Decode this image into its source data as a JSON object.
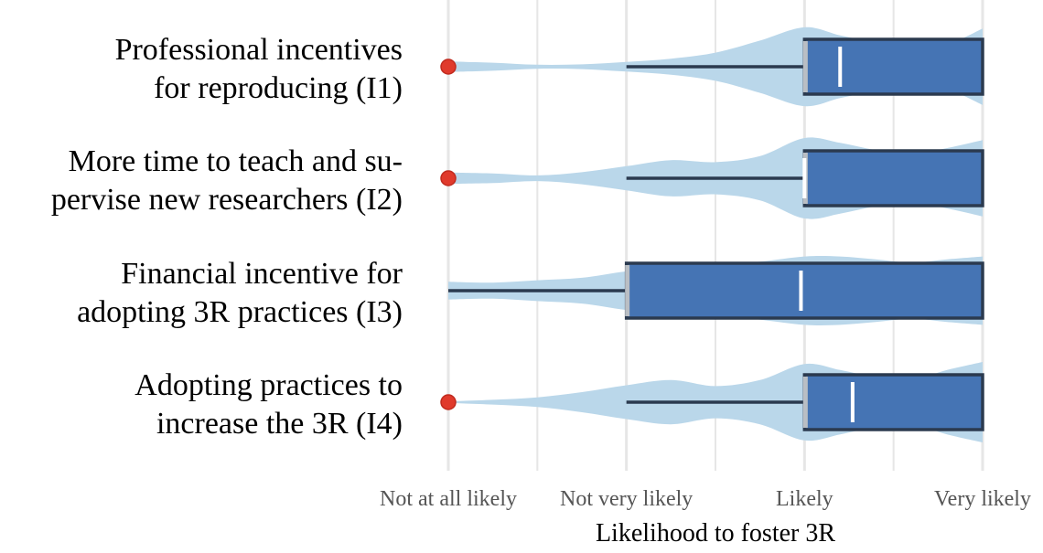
{
  "chart_data": {
    "type": "violin-box",
    "title": "",
    "xlabel": "Likelihood to foster 3R",
    "ylabel": "",
    "x_tick_labels": [
      "Not at all likely",
      "Not very likely",
      "Likely",
      "Very likely"
    ],
    "x_tick_values": [
      1,
      2,
      3,
      4
    ],
    "xlim": [
      1,
      4
    ],
    "grid": "vertical",
    "colors": {
      "violin": "#bad7ea",
      "box_fill": "#4574b4",
      "box_edge": "#2b3a4f",
      "whisker": "#2b3a4f",
      "median": "#ffffff",
      "outlier": "#e03a2c",
      "grid": "#e6e6e6"
    },
    "categories": [
      {
        "label_lines": [
          "Professional incentives",
          "for reproducing (I1)"
        ],
        "q1": 3,
        "median": 3.2,
        "q3": 4,
        "whisker_low": 2,
        "whisker_high": 4,
        "outliers": [
          1
        ],
        "density": [
          [
            1,
            0.13
          ],
          [
            1.25,
            0.1
          ],
          [
            1.5,
            0.05
          ],
          [
            1.75,
            0.06
          ],
          [
            2,
            0.12
          ],
          [
            2.25,
            0.2
          ],
          [
            2.5,
            0.35
          ],
          [
            2.75,
            0.65
          ],
          [
            3,
            0.98
          ],
          [
            3.2,
            0.78
          ],
          [
            3.4,
            0.6
          ],
          [
            3.6,
            0.42
          ],
          [
            3.8,
            0.55
          ],
          [
            4,
            0.95
          ]
        ]
      },
      {
        "label_lines": [
          "More time to teach and su-",
          "pervise new researchers (I2)"
        ],
        "q1": 3,
        "median": 3,
        "q3": 4,
        "whisker_low": 2,
        "whisker_high": 4,
        "outliers": [
          1
        ],
        "density": [
          [
            1,
            0.14
          ],
          [
            1.25,
            0.12
          ],
          [
            1.5,
            0.07
          ],
          [
            1.75,
            0.15
          ],
          [
            2,
            0.3
          ],
          [
            2.25,
            0.45
          ],
          [
            2.5,
            0.4
          ],
          [
            2.75,
            0.55
          ],
          [
            3,
            1.0
          ],
          [
            3.2,
            0.88
          ],
          [
            3.4,
            0.7
          ],
          [
            3.6,
            0.6
          ],
          [
            3.8,
            0.75
          ],
          [
            4,
            0.95
          ]
        ]
      },
      {
        "label_lines": [
          "Financial incentive for",
          "adopting 3R practices (I3)"
        ],
        "q1": 2,
        "median": 2.98,
        "q3": 4,
        "whisker_low": 1,
        "whisker_high": 4,
        "outliers": [],
        "density": [
          [
            1,
            0.22
          ],
          [
            1.25,
            0.2
          ],
          [
            1.5,
            0.26
          ],
          [
            1.75,
            0.32
          ],
          [
            2,
            0.48
          ],
          [
            2.25,
            0.58
          ],
          [
            2.5,
            0.62
          ],
          [
            2.75,
            0.72
          ],
          [
            3,
            0.85
          ],
          [
            3.2,
            0.85
          ],
          [
            3.4,
            0.78
          ],
          [
            3.6,
            0.7
          ],
          [
            3.8,
            0.78
          ],
          [
            4,
            0.85
          ]
        ]
      },
      {
        "label_lines": [
          "Adopting practices to",
          "increase the 3R (I4)"
        ],
        "q1": 3,
        "median": 3.27,
        "q3": 4,
        "whisker_low": 2,
        "whisker_high": 4,
        "outliers": [
          1
        ],
        "density": [
          [
            1,
            0.02
          ],
          [
            1.25,
            0.06
          ],
          [
            1.5,
            0.12
          ],
          [
            1.75,
            0.25
          ],
          [
            2,
            0.42
          ],
          [
            2.25,
            0.55
          ],
          [
            2.5,
            0.4
          ],
          [
            2.75,
            0.55
          ],
          [
            3,
            0.95
          ],
          [
            3.2,
            0.8
          ],
          [
            3.4,
            0.62
          ],
          [
            3.6,
            0.55
          ],
          [
            3.8,
            0.8
          ],
          [
            4,
            1.0
          ]
        ]
      }
    ]
  }
}
